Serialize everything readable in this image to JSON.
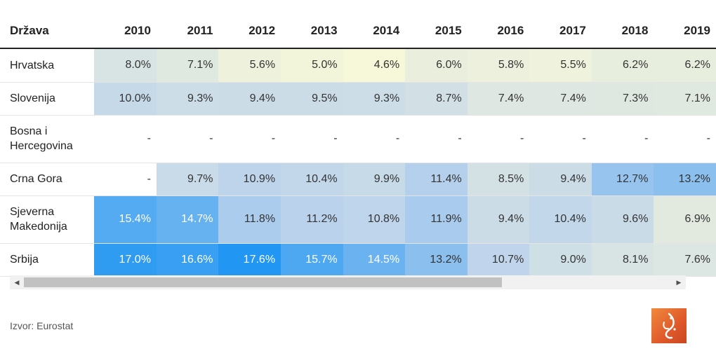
{
  "chart_data": {
    "type": "table",
    "header": {
      "country": "Država",
      "years": [
        "2010",
        "2011",
        "2012",
        "2013",
        "2014",
        "2015",
        "2016",
        "2017",
        "2018",
        "2019"
      ]
    },
    "rows": [
      {
        "country": "Hrvatska",
        "values": [
          "8.0%",
          "7.1%",
          "5.6%",
          "5.0%",
          "4.6%",
          "6.0%",
          "5.8%",
          "5.5%",
          "6.2%",
          "6.2%"
        ]
      },
      {
        "country": "Slovenija",
        "values": [
          "10.0%",
          "9.3%",
          "9.4%",
          "9.5%",
          "9.3%",
          "8.7%",
          "7.4%",
          "7.4%",
          "7.3%",
          "7.1%"
        ]
      },
      {
        "country": "Bosna i Hercegovina",
        "values": [
          "-",
          "-",
          "-",
          "-",
          "-",
          "-",
          "-",
          "-",
          "-",
          "-"
        ]
      },
      {
        "country": "Crna Gora",
        "values": [
          "-",
          "9.7%",
          "10.9%",
          "10.4%",
          "9.9%",
          "11.4%",
          "8.5%",
          "9.4%",
          "12.7%",
          "13.2%"
        ]
      },
      {
        "country": "Sjeverna Makedonija",
        "values": [
          "15.4%",
          "14.7%",
          "11.8%",
          "11.2%",
          "10.8%",
          "11.9%",
          "9.4%",
          "10.4%",
          "9.6%",
          "6.9%"
        ]
      },
      {
        "country": "Srbija",
        "values": [
          "17.0%",
          "16.6%",
          "17.6%",
          "15.7%",
          "14.5%",
          "13.2%",
          "10.7%",
          "9.0%",
          "8.1%",
          "7.6%"
        ]
      }
    ],
    "color_scale": {
      "low": "#f7f7d9",
      "mid": "#bcd3ec",
      "high": "#2196f3"
    }
  },
  "source": "Izvor: Eurostat",
  "logo_icon": "al-jazeera-logo-icon"
}
